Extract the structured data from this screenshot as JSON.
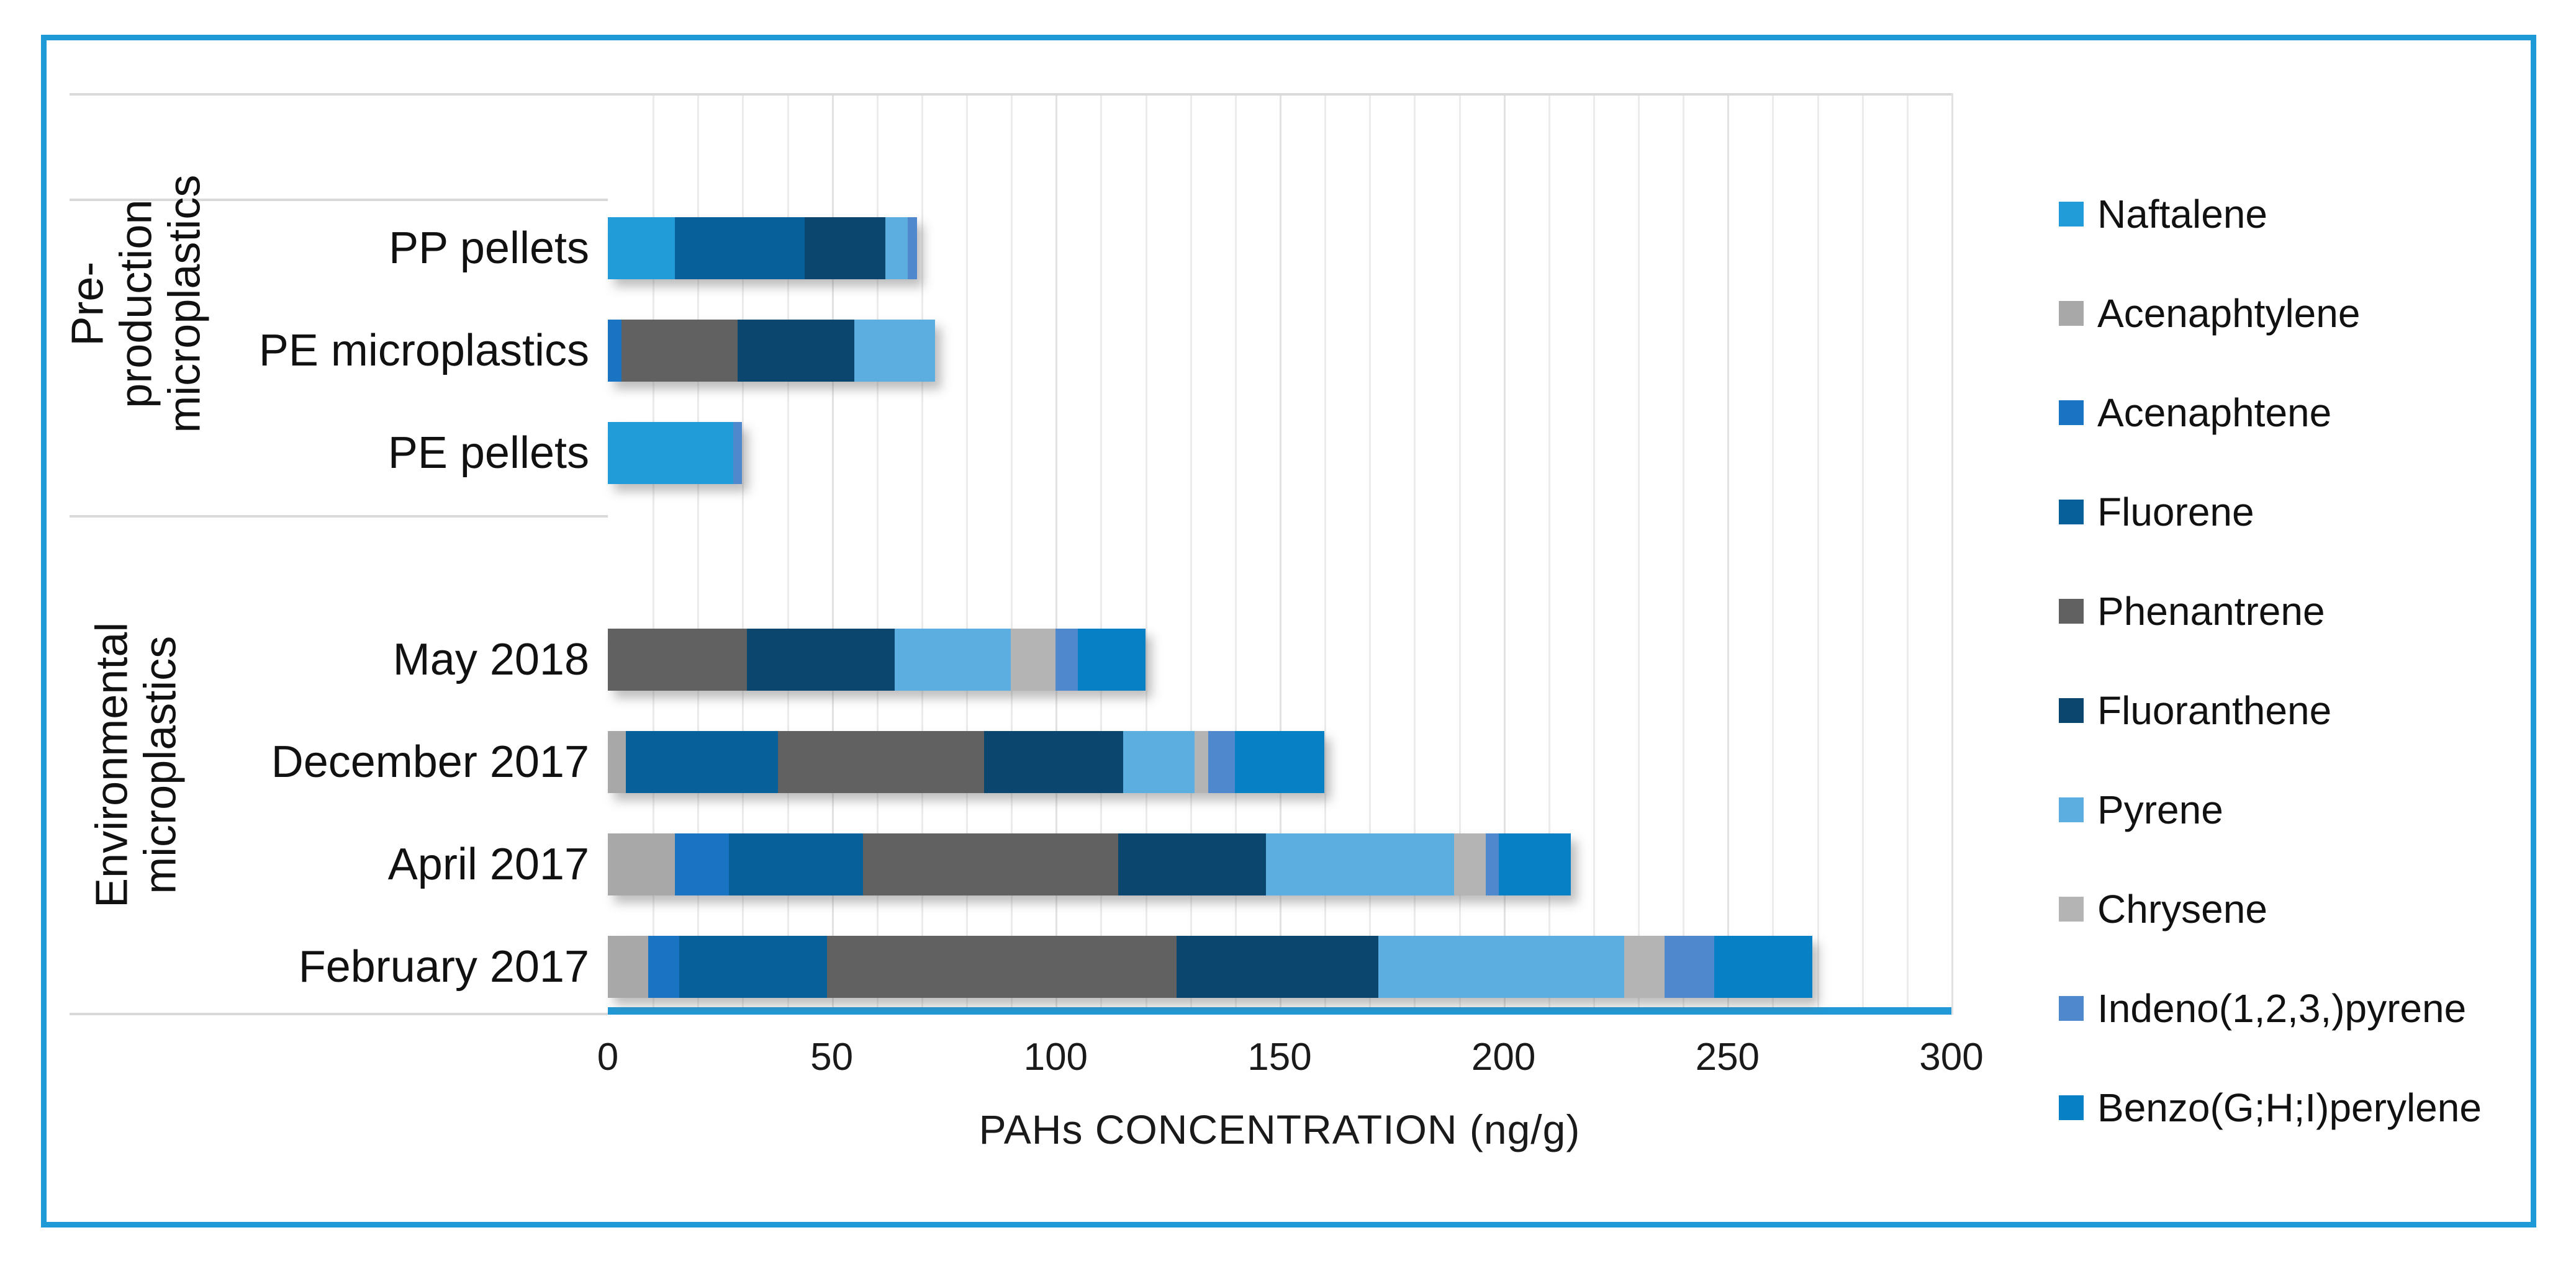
{
  "figure": {
    "border_color": "#1E9AD6",
    "background_color": "#FFFFFF",
    "gridline_minor_color": "#EBEBEB",
    "gridline_major_color": "#E2E2E2",
    "axis_line_color": "#2199D6",
    "separator_line_color": "#D9D9D9"
  },
  "chart_data": {
    "type": "bar",
    "orientation": "horizontal",
    "stacked": true,
    "title": "",
    "xlabel": "PAHs CONCENTRATION (ng/g)",
    "ylabel": "",
    "xlim": [
      0,
      300
    ],
    "x_ticks": [
      0,
      50,
      100,
      150,
      200,
      250,
      300
    ],
    "minor_gridline_interval": 10,
    "grid": true,
    "legend_position": "right",
    "category_groups": [
      {
        "group": "Pre-production microplastics",
        "categories": [
          "PP pellets",
          "PE microplastics",
          "PE pellets"
        ]
      },
      {
        "group": "Environmental microplastics",
        "categories": [
          "May 2018",
          "December 2017",
          "April 2017",
          "February 2017"
        ]
      }
    ],
    "categories": [
      "PP pellets",
      "PE microplastics",
      "PE pellets",
      "May 2018",
      "December 2017",
      "April 2017",
      "February 2017"
    ],
    "series": [
      {
        "name": "Naftalene",
        "color": "#219CD9",
        "values": [
          15,
          0,
          28,
          0,
          0,
          0,
          0
        ]
      },
      {
        "name": "Acenaphtylene",
        "color": "#A9A8A8",
        "values": [
          0,
          0,
          0,
          0,
          4,
          15,
          9
        ]
      },
      {
        "name": "Acenaphtene",
        "color": "#1B73C4",
        "values": [
          0,
          3,
          0,
          0,
          0,
          12,
          7
        ]
      },
      {
        "name": "Fluorene",
        "color": "#07609A",
        "values": [
          29,
          0,
          0,
          0,
          34,
          30,
          33
        ]
      },
      {
        "name": "Phenantrene",
        "color": "#616161",
        "values": [
          0,
          26,
          0,
          31,
          46,
          57,
          78
        ]
      },
      {
        "name": "Fluoranthene",
        "color": "#0A466E",
        "values": [
          18,
          26,
          0,
          33,
          31,
          33,
          45
        ]
      },
      {
        "name": "Pyrene",
        "color": "#5BAEDF",
        "values": [
          5,
          18,
          0,
          26,
          16,
          42,
          55
        ]
      },
      {
        "name": "Chrysene",
        "color": "#B5B4B4",
        "values": [
          0,
          0,
          0,
          10,
          3,
          7,
          9
        ]
      },
      {
        "name": "Indeno(1,2,3,)pyrene",
        "color": "#5088CE",
        "values": [
          2,
          0,
          2,
          5,
          6,
          3,
          11
        ]
      },
      {
        "name": "Benzo(G;H;I)perylene",
        "color": "#0780C6",
        "values": [
          0,
          0,
          0,
          15,
          20,
          16,
          22
        ]
      }
    ]
  }
}
